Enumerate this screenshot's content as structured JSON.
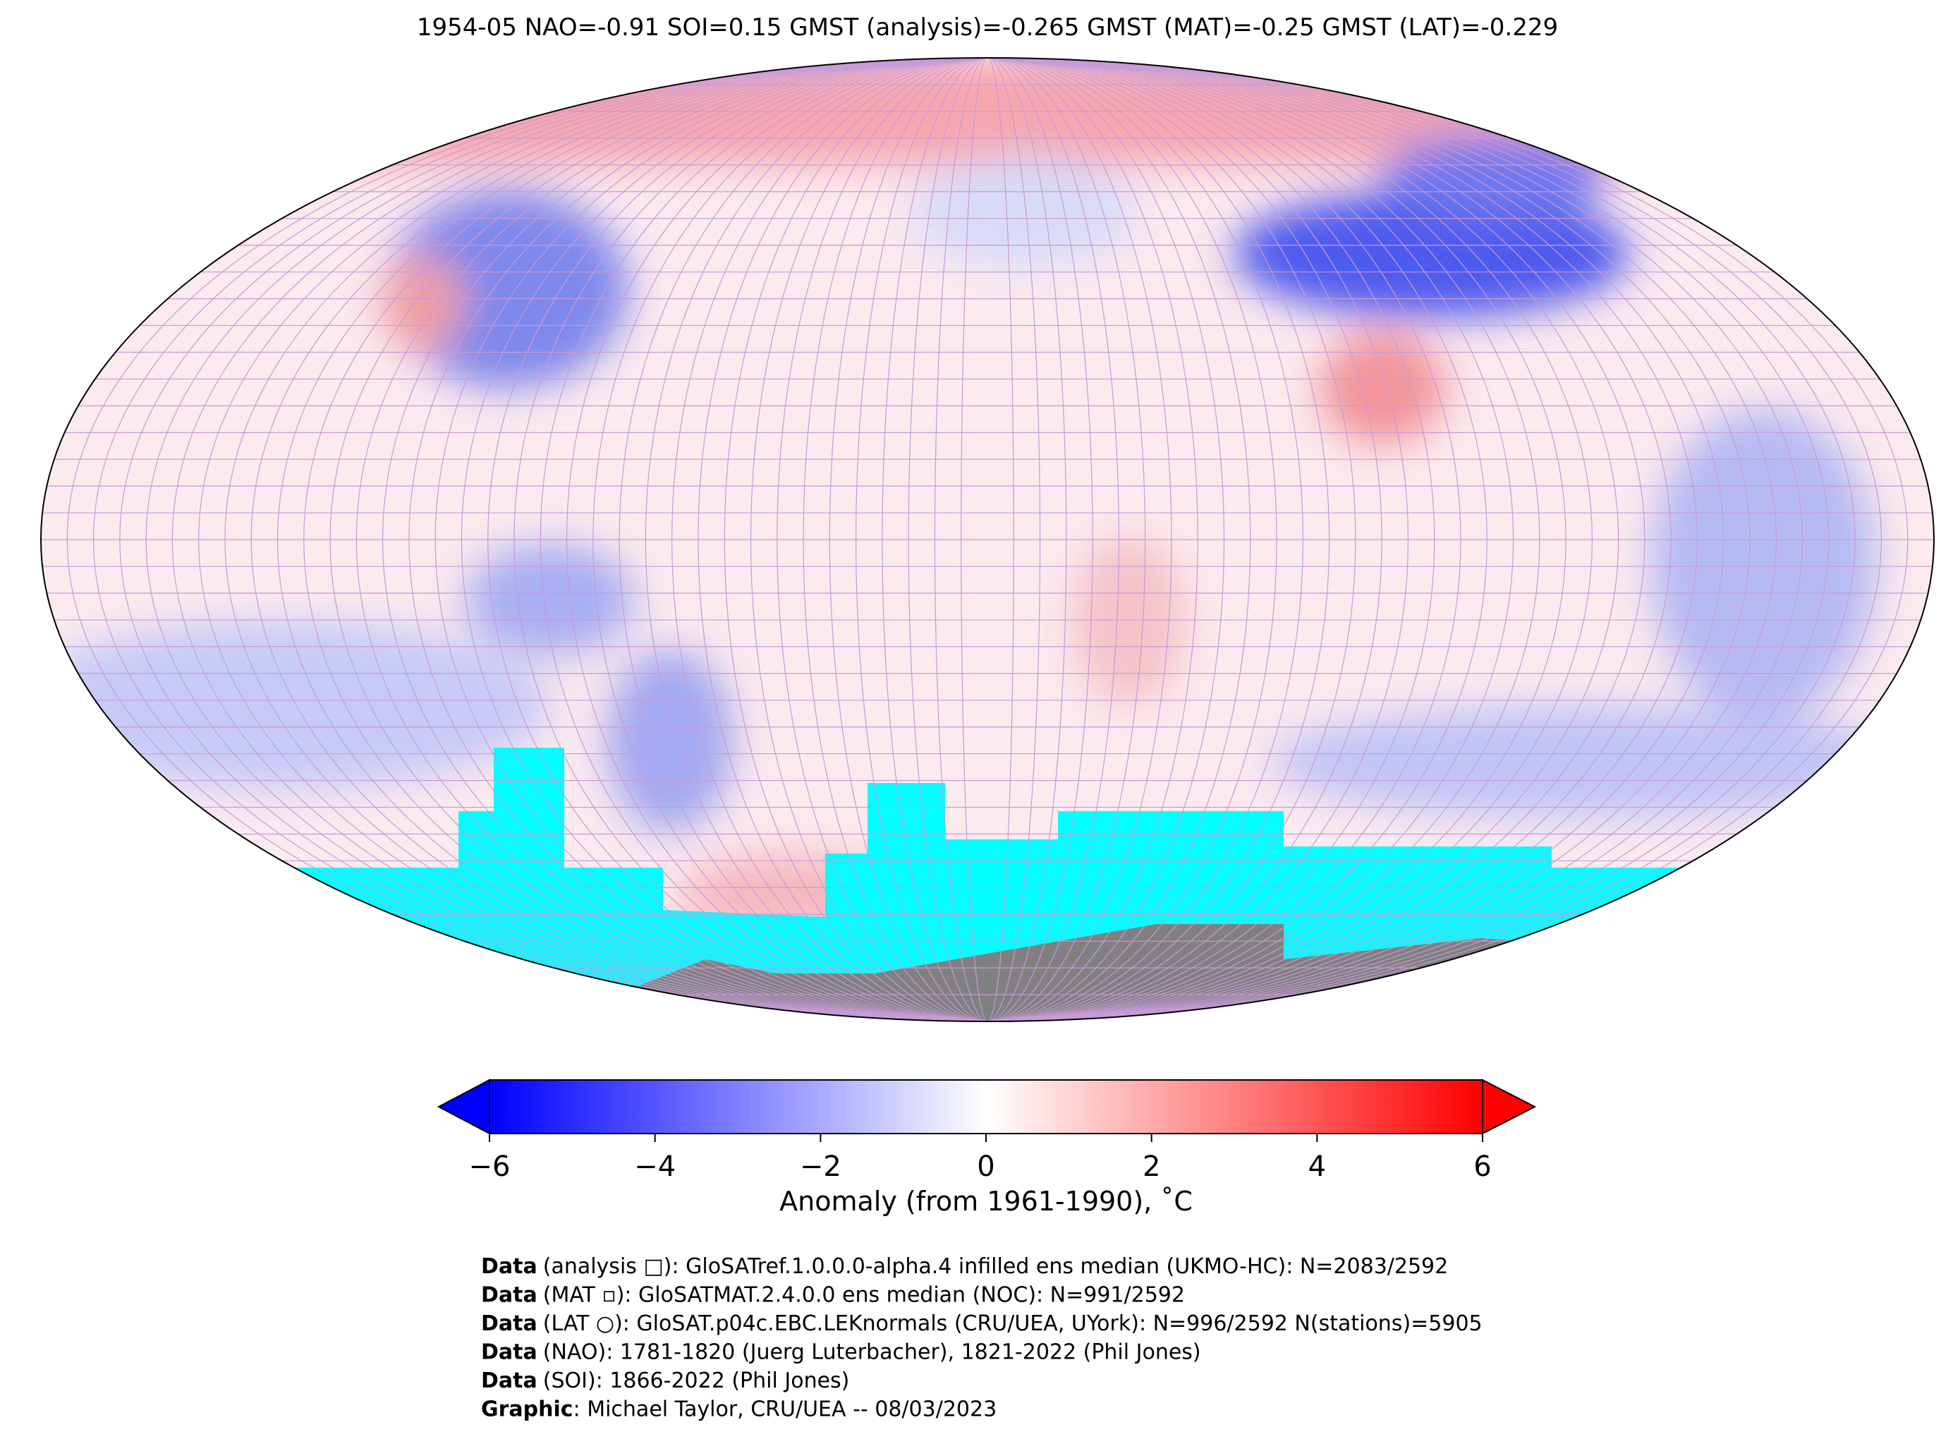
{
  "title": "1954-05 NAO=-0.91 SOI=0.15 GMST (analysis)=-0.265 GMST (MAT)=-0.25 GMST (LAT)=-0.229",
  "colorbar": {
    "label": "Anomaly (from 1961-1990), ˚C",
    "lim": [
      -6,
      6
    ],
    "ticks": [
      {
        "value": -6,
        "label": "−6"
      },
      {
        "value": -4,
        "label": "−4"
      },
      {
        "value": -2,
        "label": "−2"
      },
      0,
      2,
      4,
      6
    ]
  },
  "credits": [
    {
      "key": "Data",
      "text": "(analysis □): GloSATref.1.0.0.0-alpha.4 infilled ens median (UKMO-HC): N=2083/2592"
    },
    {
      "key": "Data",
      "text": "(MAT ▫): GloSATMAT.2.4.0.0 ens median (NOC): N=991/2592"
    },
    {
      "key": "Data",
      "text": "(LAT ○): GloSAT.p04c.EBC.LEKnormals (CRU/UEA, UYork): N=996/2592 N(stations)=5905"
    },
    {
      "key": "Data",
      "text": "(NAO): 1781-1820 (Juerg Luterbacher), 1821-2022 (Phil Jones)"
    },
    {
      "key": "Data",
      "text": "(SOI): 1866-2022 (Phil Jones)"
    },
    {
      "key": "Graphic",
      "text": ": Michael Taylor, CRU/UEA -- 08/03/2023"
    }
  ]
}
